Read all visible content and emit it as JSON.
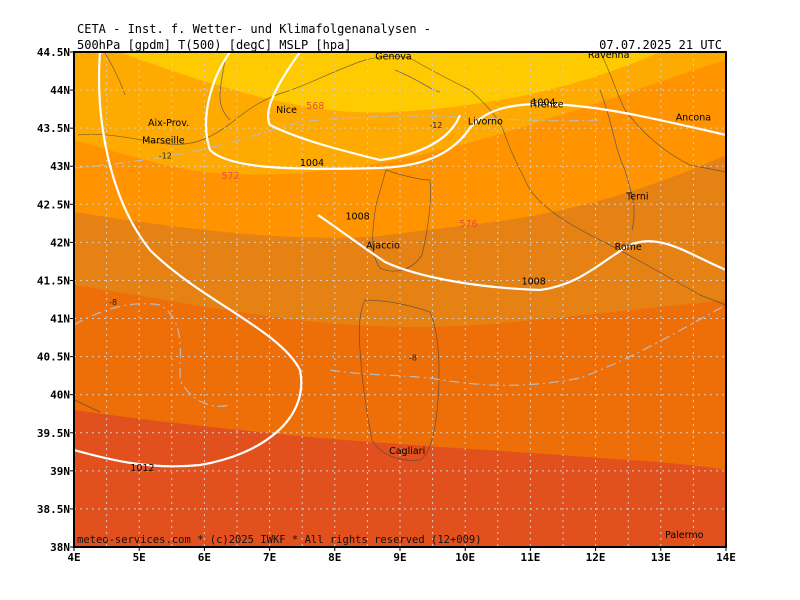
{
  "header": {
    "line1": "CETA - Inst. f. Wetter- und Klimafolgenanalysen -",
    "line2": "500hPa [gpdm] T(500) [degC] MSLP [hpa]",
    "datetime": "07.07.2025 21 UTC"
  },
  "footer": "meteo-services.com * (c)2025 IWKF * All rights reserved (12+009)",
  "axes": {
    "lat_labels": [
      "44.5N",
      "44N",
      "43.5N",
      "43N",
      "42.5N",
      "42N",
      "41.5N",
      "41N",
      "40.5N",
      "40N",
      "39.5N",
      "39N",
      "38.5N",
      "38N"
    ],
    "lon_labels": [
      "4E",
      "5E",
      "6E",
      "7E",
      "8E",
      "9E",
      "10E",
      "11E",
      "12E",
      "13E",
      "14E"
    ]
  },
  "colors": {
    "band_568": "#ffca00",
    "band_572": "#ffaa00",
    "band_576": "#ff9400",
    "band_580": "#e68214",
    "band_584": "#ee6e08",
    "band_588": "#e2501e",
    "isobar": "#ffffff",
    "height_label": "#e0503a",
    "grid": "#c8c8c8"
  },
  "cities": [
    {
      "name": "Genova",
      "lon": 8.9,
      "lat": 44.4
    },
    {
      "name": "Ravenna",
      "lon": 12.2,
      "lat": 44.42
    },
    {
      "name": "Firenze",
      "lon": 11.25,
      "lat": 43.77
    },
    {
      "name": "Nice",
      "lon": 7.26,
      "lat": 43.7
    },
    {
      "name": "Aix-Prov.",
      "lon": 5.45,
      "lat": 43.53
    },
    {
      "name": "Marseille",
      "lon": 5.37,
      "lat": 43.3
    },
    {
      "name": "Livorno",
      "lon": 10.31,
      "lat": 43.55
    },
    {
      "name": "Ancona",
      "lon": 13.5,
      "lat": 43.6
    },
    {
      "name": "Terni",
      "lon": 12.64,
      "lat": 42.56
    },
    {
      "name": "Ajaccio",
      "lon": 8.74,
      "lat": 41.92
    },
    {
      "name": "Rome",
      "lon": 12.5,
      "lat": 41.9
    },
    {
      "name": "Cagliari",
      "lon": 9.11,
      "lat": 39.22
    },
    {
      "name": "Palermo",
      "lon": 13.36,
      "lat": 38.12
    }
  ],
  "isobars": [
    {
      "label": "1004",
      "lon": 7.65,
      "lat": 43.0,
      "label2": "1004",
      "lon2": 11.2,
      "lat2": 43.8
    },
    {
      "label": "1008",
      "lon": 8.35,
      "lat": 42.3,
      "label2": "1008",
      "lon2": 11.05,
      "lat2": 41.45
    },
    {
      "label": "1012",
      "lon": 5.05,
      "lat": 39.0
    }
  ],
  "height_labels": [
    {
      "label": "568",
      "lon": 7.7,
      "lat": 43.75
    },
    {
      "label": "572",
      "lon": 6.4,
      "lat": 42.83
    },
    {
      "label": "576",
      "lon": 10.05,
      "lat": 42.2
    }
  ],
  "temp_labels": [
    {
      "label": "-12",
      "lon": 5.4,
      "lat": 43.1
    },
    {
      "label": "-12",
      "lon": 9.55,
      "lat": 43.5
    },
    {
      "label": "-8",
      "lon": 4.6,
      "lat": 41.18
    },
    {
      "label": "-8",
      "lon": 9.2,
      "lat": 40.45
    }
  ]
}
